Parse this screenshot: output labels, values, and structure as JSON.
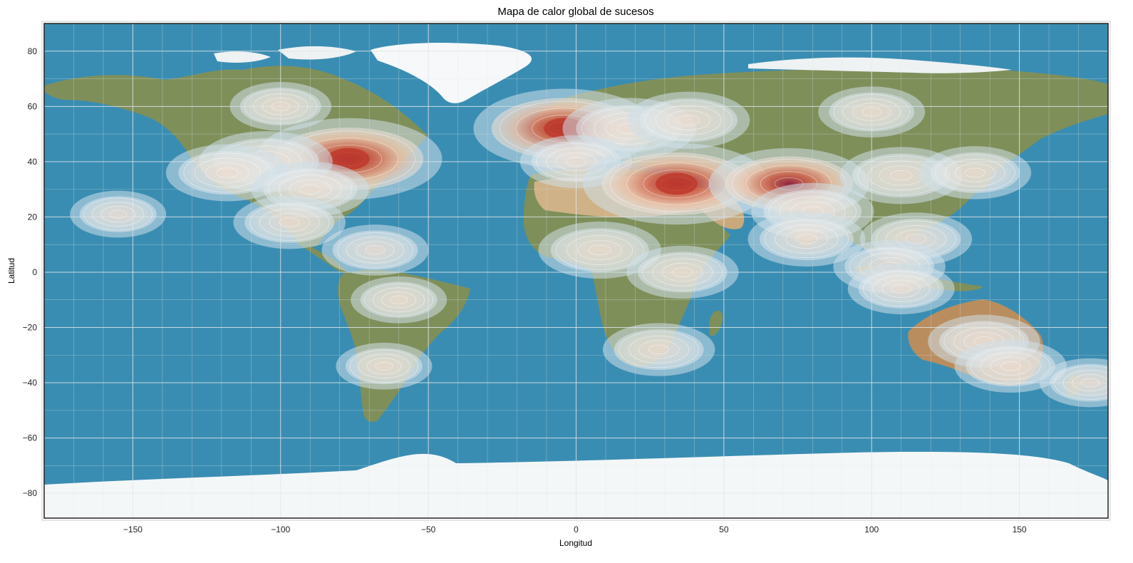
{
  "chart_data": {
    "type": "heatmap",
    "title": "Mapa de calor global de sucesos",
    "xlabel": "Longitud",
    "ylabel": "Latitud",
    "xlim": [
      -180,
      180
    ],
    "ylim": [
      -89,
      90
    ],
    "xticks": [
      -150,
      -100,
      -50,
      0,
      50,
      100,
      150
    ],
    "yticks": [
      80,
      60,
      40,
      20,
      0,
      -20,
      -40,
      -60,
      -80
    ],
    "xtick_labels": [
      "−150",
      "−100",
      "−50",
      "0",
      "50",
      "100",
      "150"
    ],
    "ytick_labels": [
      "80",
      "60",
      "40",
      "20",
      "0",
      "−20",
      "−40",
      "−60",
      "−80"
    ],
    "grid": true,
    "background": "satellite world map",
    "hotspots": [
      {
        "lon": -77,
        "lat": 41,
        "intensity": 1.0
      },
      {
        "lon": -105,
        "lat": 40,
        "intensity": 0.5
      },
      {
        "lon": -118,
        "lat": 36,
        "intensity": 0.4
      },
      {
        "lon": -90,
        "lat": 30,
        "intensity": 0.35
      },
      {
        "lon": -97,
        "lat": 18,
        "intensity": 0.3
      },
      {
        "lon": -100,
        "lat": 60,
        "intensity": 0.2
      },
      {
        "lon": -155,
        "lat": 21,
        "intensity": 0.15
      },
      {
        "lon": -68,
        "lat": 8,
        "intensity": 0.25
      },
      {
        "lon": -60,
        "lat": -10,
        "intensity": 0.15
      },
      {
        "lon": -65,
        "lat": -34,
        "intensity": 0.15
      },
      {
        "lon": -4,
        "lat": 52,
        "intensity": 0.95
      },
      {
        "lon": 18,
        "lat": 52,
        "intensity": 0.5
      },
      {
        "lon": 38,
        "lat": 55,
        "intensity": 0.4
      },
      {
        "lon": 0,
        "lat": 40,
        "intensity": 0.3
      },
      {
        "lon": 34,
        "lat": 32,
        "intensity": 1.0
      },
      {
        "lon": 72,
        "lat": 32,
        "intensity": 0.75
      },
      {
        "lon": 80,
        "lat": 22,
        "intensity": 0.4
      },
      {
        "lon": 78,
        "lat": 12,
        "intensity": 0.35
      },
      {
        "lon": 8,
        "lat": 8,
        "intensity": 0.4
      },
      {
        "lon": 36,
        "lat": 0,
        "intensity": 0.3
      },
      {
        "lon": 28,
        "lat": -28,
        "intensity": 0.3
      },
      {
        "lon": 100,
        "lat": 58,
        "intensity": 0.25
      },
      {
        "lon": 110,
        "lat": 35,
        "intensity": 0.4
      },
      {
        "lon": 135,
        "lat": 36,
        "intensity": 0.3
      },
      {
        "lon": 115,
        "lat": 12,
        "intensity": 0.3
      },
      {
        "lon": 106,
        "lat": 2,
        "intensity": 0.3
      },
      {
        "lon": 110,
        "lat": -6,
        "intensity": 0.25
      },
      {
        "lon": 138,
        "lat": -25,
        "intensity": 0.3
      },
      {
        "lon": 147,
        "lat": -34,
        "intensity": 0.3
      },
      {
        "lon": 174,
        "lat": -40,
        "intensity": 0.2
      }
    ]
  },
  "colors": {
    "ocean": "#3a8db2",
    "land": "#7f8f5a",
    "desert": "#c8a878",
    "ice": "#f4f7f8",
    "heat_low": "#e6eef2",
    "heat_mid": "#e9a27f",
    "heat_high": "#c0392b",
    "grid": "#e0e6ea"
  }
}
